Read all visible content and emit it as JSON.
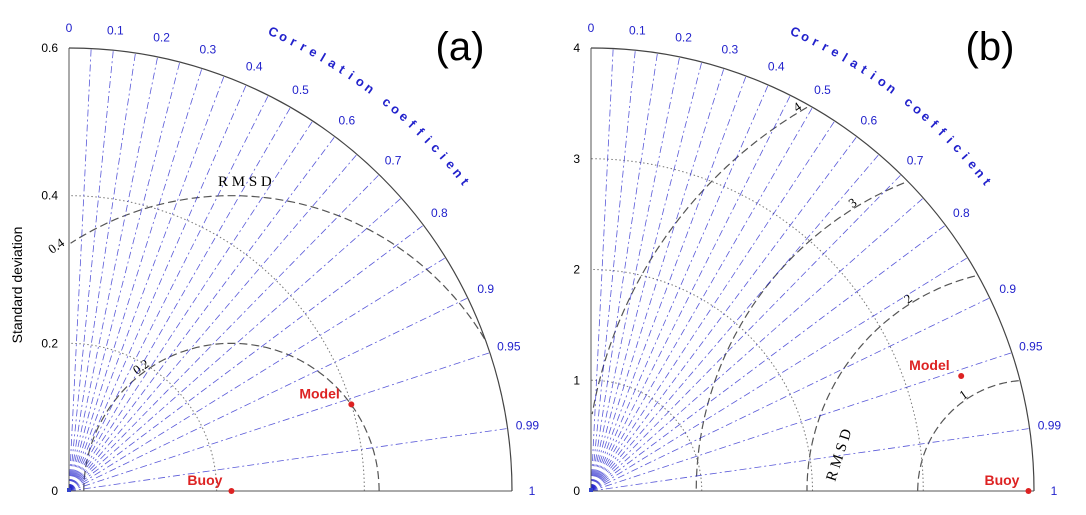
{
  "colors": {
    "correlation": "#2222cc",
    "points": "#dd2222",
    "rmsd": "#555555",
    "std_dotted": "#777777",
    "outer_arc": "#444444"
  },
  "ylabel": "Standard deviation",
  "chart_data": [
    {
      "type": "taylor",
      "panel_label": "(a)",
      "ylabel": "Standard deviation",
      "std_max": 0.6,
      "std_ticks": [
        "0",
        "0.2",
        "0.4",
        "0.6"
      ],
      "std_tick_values": [
        0,
        0.2,
        0.4,
        0.6
      ],
      "std_dotted_arcs": [
        0.2,
        0.4
      ],
      "correlation_title": "Correlation coefficient",
      "correlation_ticks": [
        "0",
        "0.1",
        "0.2",
        "0.3",
        "0.4",
        "0.5",
        "0.6",
        "0.7",
        "0.8",
        "0.9",
        "0.95",
        "0.99",
        "1"
      ],
      "correlation_tick_values": [
        0,
        0.1,
        0.2,
        0.3,
        0.4,
        0.5,
        0.6,
        0.7,
        0.8,
        0.9,
        0.95,
        0.99,
        1
      ],
      "correlation_lines": [
        0.05,
        0.1,
        0.15,
        0.2,
        0.25,
        0.3,
        0.35,
        0.4,
        0.45,
        0.5,
        0.55,
        0.6,
        0.65,
        0.7,
        0.75,
        0.8,
        0.85,
        0.9,
        0.95,
        0.99
      ],
      "rmsd_title": "R M S D",
      "rmsd_contours": [
        0.2,
        0.4
      ],
      "rmsd_contour_labels": [
        "0.2",
        "0.4"
      ],
      "points": [
        {
          "label": "Buoy",
          "std": 0.22,
          "corr": 1.0
        },
        {
          "label": "Model",
          "std": 0.4,
          "corr": 0.956
        }
      ]
    },
    {
      "type": "taylor",
      "panel_label": "(b)",
      "ylabel": "",
      "std_max": 4,
      "std_ticks": [
        "0",
        "1",
        "2",
        "3",
        "4"
      ],
      "std_tick_values": [
        0,
        1,
        2,
        3,
        4
      ],
      "std_dotted_arcs": [
        1,
        2,
        3
      ],
      "correlation_title": "Correlation coefficient",
      "correlation_ticks": [
        "0",
        "0.1",
        "0.2",
        "0.3",
        "0.4",
        "0.5",
        "0.6",
        "0.7",
        "0.8",
        "0.9",
        "0.95",
        "0.99",
        "1"
      ],
      "correlation_tick_values": [
        0,
        0.1,
        0.2,
        0.3,
        0.4,
        0.5,
        0.6,
        0.7,
        0.8,
        0.9,
        0.95,
        0.99,
        1
      ],
      "correlation_lines": [
        0.05,
        0.1,
        0.15,
        0.2,
        0.25,
        0.3,
        0.35,
        0.4,
        0.45,
        0.5,
        0.55,
        0.6,
        0.65,
        0.7,
        0.75,
        0.8,
        0.85,
        0.9,
        0.95,
        0.99
      ],
      "rmsd_title": "R M S D",
      "rmsd_contours": [
        1,
        2,
        3,
        4
      ],
      "rmsd_contour_labels": [
        "1",
        "2",
        "3",
        "4"
      ],
      "points": [
        {
          "label": "Buoy",
          "std": 3.95,
          "corr": 1.0
        },
        {
          "label": "Model",
          "std": 3.5,
          "corr": 0.955
        }
      ]
    }
  ]
}
